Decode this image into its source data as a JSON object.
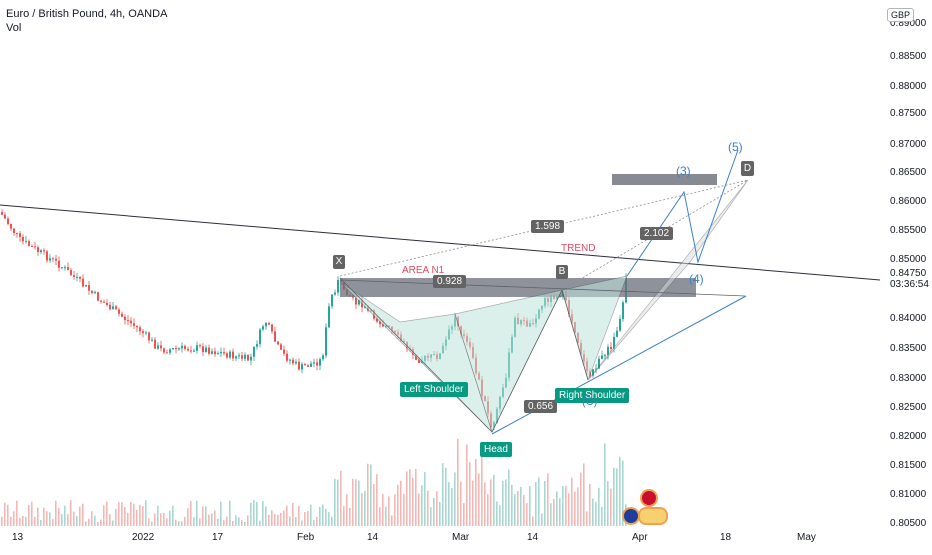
{
  "header": {
    "symbol_title": "Euro / British Pound, 4h, OANDA",
    "indicator": "Vol"
  },
  "price_axis": {
    "currency": "GBP",
    "ticks": [
      "0.89000",
      "0.88500",
      "0.88000",
      "0.87500",
      "0.87000",
      "0.86500",
      "0.86000",
      "0.85500",
      "0.85000",
      "0.84000",
      "0.83500",
      "0.83000",
      "0.82500",
      "0.82000",
      "0.81500",
      "0.81000",
      "0.80500"
    ],
    "last_price": "0.84750",
    "countdown": "03:36:54"
  },
  "time_axis": {
    "ticks": [
      "13",
      "2022",
      "17",
      "Feb",
      "14",
      "Mar",
      "14",
      "Apr",
      "18",
      "May"
    ]
  },
  "annotations": {
    "point_x": "X",
    "point_b": "B",
    "point_d": "D",
    "area_label": "AREA N1",
    "trend_label": "TREND",
    "ratio_0928": "0.928",
    "ratio_1598": "1.598",
    "ratio_2102": "2.102",
    "ratio_0656": "0.656",
    "left_shoulder": "Left Shoulder",
    "head": "Head",
    "right_shoulder": "Right Shoulder",
    "wave_3": "(3)",
    "wave_4": "(4)",
    "wave_5": "(5)",
    "wave_c": "(C)"
  },
  "colors": {
    "green_label": "#089981",
    "grey_label": "#636363",
    "blue_wave": "#3d7fc4",
    "candle_up": "#26a69a",
    "candle_down": "#ef5350",
    "trend_red": "#e04c5f"
  }
}
